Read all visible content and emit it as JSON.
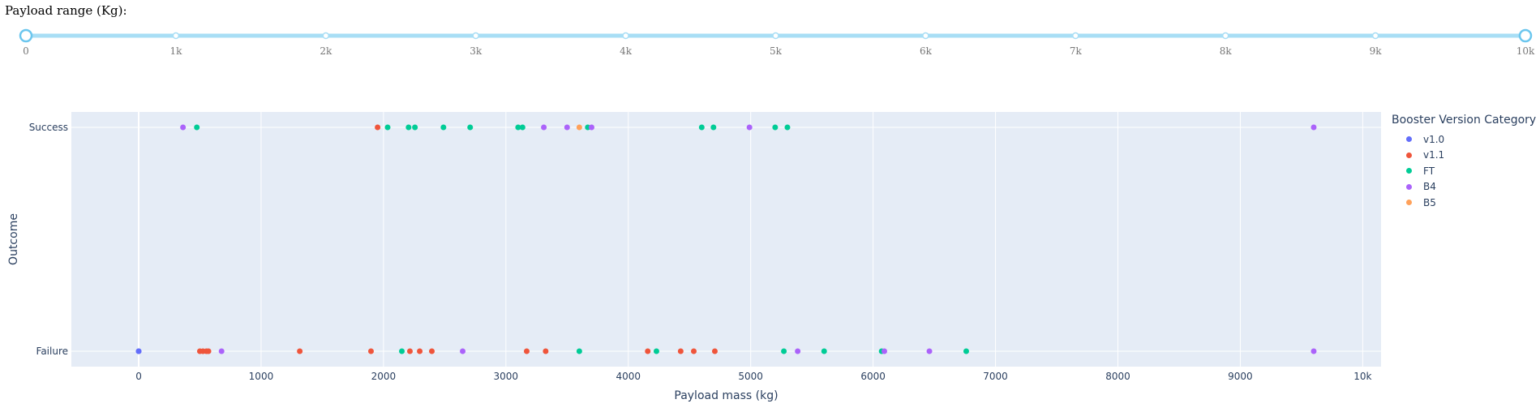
{
  "slider": {
    "label": "Payload range (Kg):",
    "min": 0,
    "max": 10000,
    "value": [
      0,
      10000
    ],
    "marks": [
      "0",
      "1k",
      "2k",
      "3k",
      "4k",
      "5k",
      "6k",
      "7k",
      "8k",
      "9k",
      "10k"
    ],
    "track_color": "#a8def5",
    "handle_color": "#6bc6ee"
  },
  "chart_data": {
    "type": "scatter",
    "xlabel": "Payload mass (kg)",
    "ylabel": "Outcome",
    "xlim": [
      -550,
      10150
    ],
    "x_ticks": [
      0,
      1000,
      2000,
      3000,
      4000,
      5000,
      6000,
      7000,
      8000,
      9000,
      10000
    ],
    "x_tick_labels": [
      "0",
      "1000",
      "2000",
      "3000",
      "4000",
      "5000",
      "6000",
      "7000",
      "8000",
      "9000",
      "10k"
    ],
    "categories": [
      "Failure",
      "Success"
    ],
    "grid": true,
    "plot_bgcolor": "#e5ecf6",
    "legend": {
      "title": "Booster Version Category",
      "position": "right"
    },
    "series": [
      {
        "name": "v1.0",
        "color": "#636efa",
        "points": [
          {
            "x": 0,
            "y": "Failure"
          },
          {
            "x": 0,
            "y": "Failure"
          }
        ]
      },
      {
        "name": "v1.1",
        "color": "#ef553b",
        "points": [
          {
            "x": 1952,
            "y": "Success"
          },
          {
            "x": 500,
            "y": "Failure"
          },
          {
            "x": 525,
            "y": "Failure"
          },
          {
            "x": 553,
            "y": "Failure"
          },
          {
            "x": 570,
            "y": "Failure"
          },
          {
            "x": 1316,
            "y": "Failure"
          },
          {
            "x": 1898,
            "y": "Failure"
          },
          {
            "x": 2216,
            "y": "Failure"
          },
          {
            "x": 2296,
            "y": "Failure"
          },
          {
            "x": 2395,
            "y": "Failure"
          },
          {
            "x": 3170,
            "y": "Failure"
          },
          {
            "x": 3325,
            "y": "Failure"
          },
          {
            "x": 4159,
            "y": "Failure"
          },
          {
            "x": 4428,
            "y": "Failure"
          },
          {
            "x": 4535,
            "y": "Failure"
          },
          {
            "x": 4707,
            "y": "Failure"
          }
        ]
      },
      {
        "name": "FT",
        "color": "#00cc96",
        "points": [
          {
            "x": 475,
            "y": "Success"
          },
          {
            "x": 2034,
            "y": "Success"
          },
          {
            "x": 2205,
            "y": "Success"
          },
          {
            "x": 2257,
            "y": "Success"
          },
          {
            "x": 2490,
            "y": "Success"
          },
          {
            "x": 2708,
            "y": "Success"
          },
          {
            "x": 3100,
            "y": "Success"
          },
          {
            "x": 3136,
            "y": "Success"
          },
          {
            "x": 3669,
            "y": "Success"
          },
          {
            "x": 4600,
            "y": "Success"
          },
          {
            "x": 4696,
            "y": "Success"
          },
          {
            "x": 5200,
            "y": "Success"
          },
          {
            "x": 5300,
            "y": "Success"
          },
          {
            "x": 2150,
            "y": "Failure"
          },
          {
            "x": 3600,
            "y": "Failure"
          },
          {
            "x": 4230,
            "y": "Failure"
          },
          {
            "x": 5271,
            "y": "Failure"
          },
          {
            "x": 5600,
            "y": "Failure"
          },
          {
            "x": 6070,
            "y": "Failure"
          },
          {
            "x": 6761,
            "y": "Failure"
          }
        ]
      },
      {
        "name": "B4",
        "color": "#ab63fa",
        "points": [
          {
            "x": 362,
            "y": "Success"
          },
          {
            "x": 3310,
            "y": "Success"
          },
          {
            "x": 3500,
            "y": "Success"
          },
          {
            "x": 3700,
            "y": "Success"
          },
          {
            "x": 4990,
            "y": "Success"
          },
          {
            "x": 9600,
            "y": "Success"
          },
          {
            "x": 677,
            "y": "Failure"
          },
          {
            "x": 2647,
            "y": "Failure"
          },
          {
            "x": 5384,
            "y": "Failure"
          },
          {
            "x": 6092,
            "y": "Failure"
          },
          {
            "x": 6460,
            "y": "Failure"
          },
          {
            "x": 9600,
            "y": "Failure"
          }
        ]
      },
      {
        "name": "B5",
        "color": "#ffa15a",
        "points": [
          {
            "x": 3600,
            "y": "Success"
          }
        ]
      }
    ]
  }
}
